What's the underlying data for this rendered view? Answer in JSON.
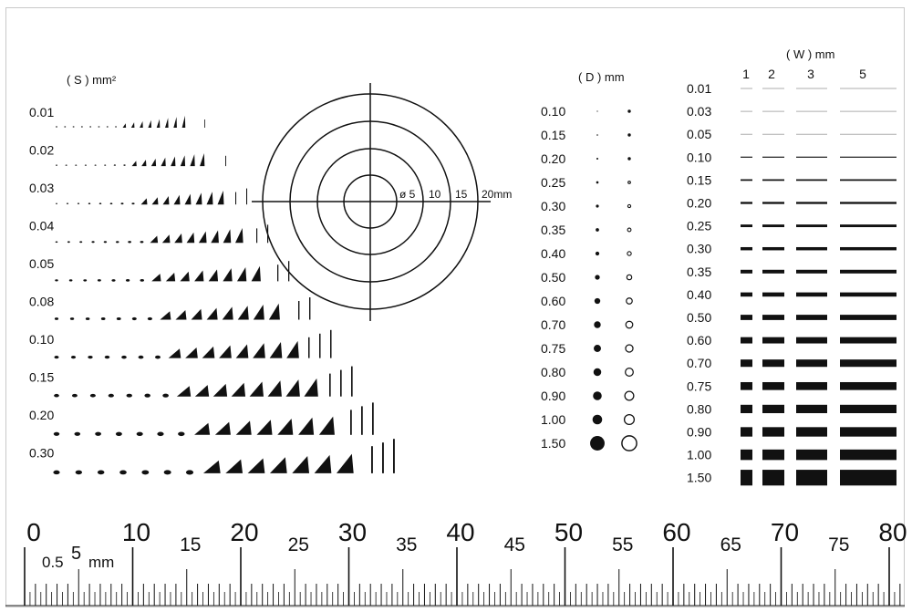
{
  "colors": {
    "ink": "#111111",
    "paper": "#ffffff",
    "border": "#c9c9c9"
  },
  "section_s": {
    "title": "( S ) mm²",
    "rows": [
      "0.01",
      "0.02",
      "0.03",
      "0.04",
      "0.05",
      "0.08",
      "0.10",
      "0.15",
      "0.20",
      "0.30"
    ]
  },
  "target": {
    "labels": [
      "ø 5",
      "10",
      "15",
      "20mm"
    ],
    "diameters_mm": [
      5,
      10,
      15,
      20
    ]
  },
  "section_d": {
    "title": "( D ) mm",
    "rows": [
      "0.10",
      "0.15",
      "0.20",
      "0.25",
      "0.30",
      "0.35",
      "0.40",
      "0.50",
      "0.60",
      "0.70",
      "0.75",
      "0.80",
      "0.90",
      "1.00",
      "1.50"
    ]
  },
  "section_w": {
    "title": "( W ) mm",
    "columns": [
      "1",
      "2",
      "3",
      "5"
    ],
    "rows": [
      "0.01",
      "0.03",
      "0.05",
      "0.10",
      "0.15",
      "0.20",
      "0.25",
      "0.30",
      "0.35",
      "0.40",
      "0.50",
      "0.60",
      "0.70",
      "0.75",
      "0.80",
      "0.90",
      "1.00",
      "1.50"
    ]
  },
  "ruler": {
    "major_labels": [
      "0",
      "10",
      "20",
      "30",
      "40",
      "50",
      "60",
      "70",
      "80"
    ],
    "minor_labels": [
      "15",
      "25",
      "35",
      "45",
      "55",
      "65",
      "75"
    ],
    "small_label": "0.5",
    "five_label": "5",
    "unit": "mm"
  }
}
